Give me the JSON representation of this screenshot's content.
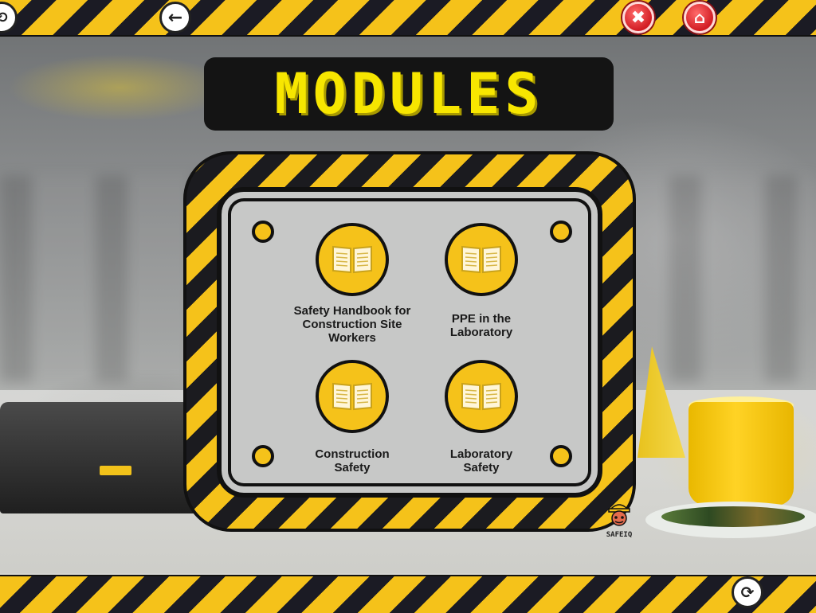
{
  "title": "MODULES",
  "nav": {
    "back_icon": "←",
    "close_icon": "✖",
    "home_icon": "⌂"
  },
  "modules": [
    {
      "label": "Safety Handbook for\nConstruction Site\nWorkers",
      "icon": "open-book-icon"
    },
    {
      "label": "PPE in the\nLaboratory",
      "icon": "open-book-icon"
    },
    {
      "label": "Construction\nSafety",
      "icon": "open-book-icon"
    },
    {
      "label": "Laboratory\nSafety",
      "icon": "open-book-icon"
    }
  ],
  "branding": {
    "logo_text": "SAFEIQ"
  },
  "colors": {
    "hazard_yellow": "#f5c21a",
    "hazard_black": "#1b1b24",
    "title_text": "#f7e600",
    "panel_grey": "#c7c8c7",
    "button_red": "#d21d24"
  }
}
